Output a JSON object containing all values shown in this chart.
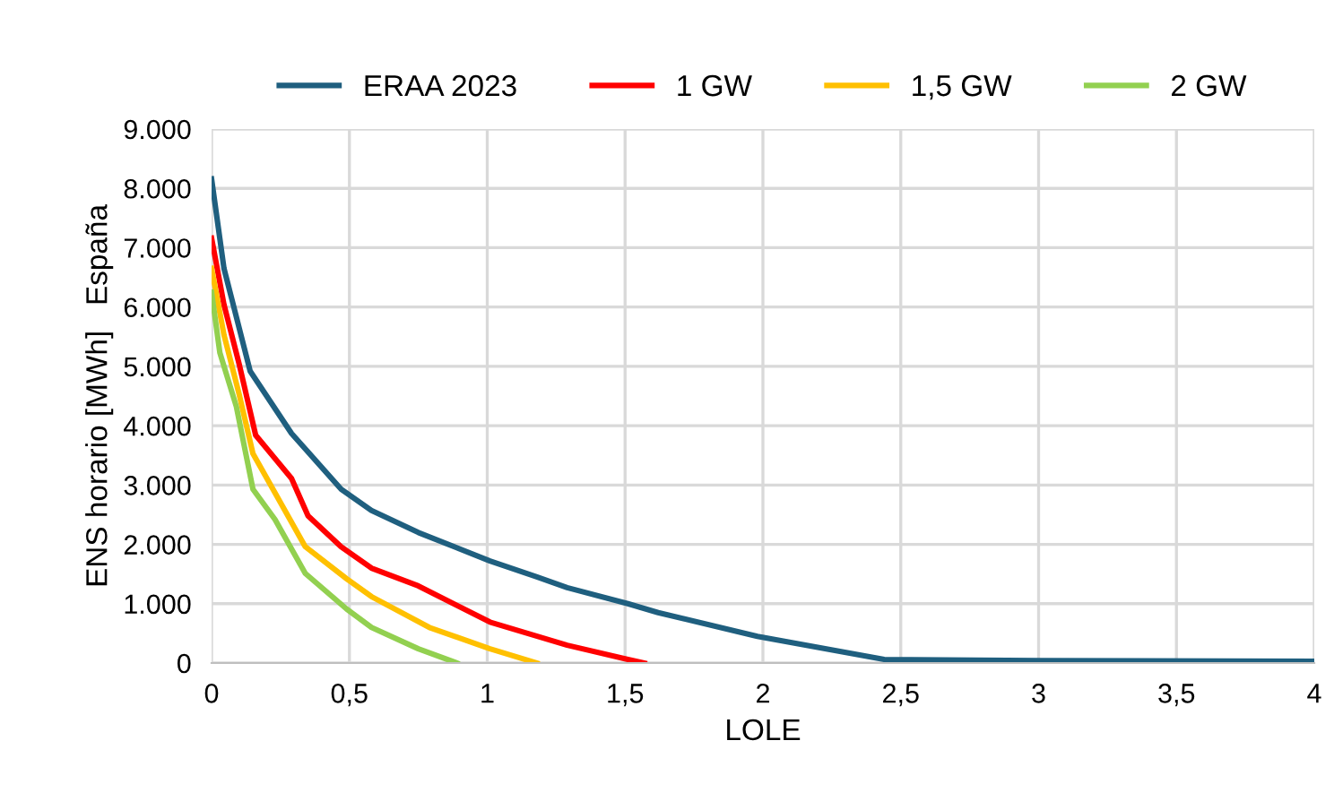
{
  "chart_data": {
    "type": "line",
    "xlabel": "LOLE",
    "ylabel": "ENS horario [MWh]   España",
    "xlim": [
      0,
      4
    ],
    "ylim": [
      0,
      9000
    ],
    "xticks": [
      0,
      {
        "value": 0.5,
        "label": "0,5"
      },
      1,
      {
        "value": 1.5,
        "label": "1,5"
      },
      2,
      {
        "value": 2.5,
        "label": "2,5"
      },
      3,
      {
        "value": 3.5,
        "label": "3,5"
      },
      4
    ],
    "yticks": [
      0,
      {
        "value": 1000,
        "label": "1.000"
      },
      {
        "value": 2000,
        "label": "2.000"
      },
      {
        "value": 3000,
        "label": "3.000"
      },
      {
        "value": 4000,
        "label": "4.000"
      },
      {
        "value": 5000,
        "label": "5.000"
      },
      {
        "value": 6000,
        "label": "6.000"
      },
      {
        "value": 7000,
        "label": "7.000"
      },
      {
        "value": 8000,
        "label": "8.000"
      },
      {
        "value": 9000,
        "label": "9.000"
      }
    ],
    "grid": true,
    "legend": "top",
    "marker": "none",
    "line_style": "solid",
    "series": [
      {
        "name": "ERAA 2023",
        "color": "#1f5f7f",
        "x": [
          0,
          0.045,
          0.14,
          0.29,
          0.47,
          0.58,
          0.75,
          1.01,
          1.18,
          1.29,
          1.51,
          1.62,
          1.98,
          2.44,
          3.0,
          4.0
        ],
        "values": [
          8160,
          6650,
          4920,
          3870,
          2930,
          2570,
          2200,
          1720,
          1450,
          1270,
          1000,
          850,
          450,
          60,
          40,
          30
        ]
      },
      {
        "name": "1 GW",
        "color": "#ff0000",
        "x": [
          0,
          0.045,
          0.1,
          0.16,
          0.29,
          0.35,
          0.47,
          0.58,
          0.75,
          1.01,
          1.29,
          1.51,
          1.57
        ],
        "values": [
          7160,
          6040,
          5040,
          3840,
          3110,
          2480,
          1960,
          1600,
          1300,
          690,
          300,
          60,
          0
        ]
      },
      {
        "name": "1,5 GW",
        "color": "#ffc000",
        "x": [
          0,
          0.045,
          0.1,
          0.15,
          0.23,
          0.34,
          0.49,
          0.58,
          0.79,
          1.01,
          1.18
        ],
        "values": [
          6650,
          5530,
          4530,
          3530,
          2870,
          1960,
          1420,
          1120,
          600,
          240,
          0
        ]
      },
      {
        "name": "2 GW",
        "color": "#92d050",
        "x": [
          0,
          0.03,
          0.09,
          0.15,
          0.23,
          0.34,
          0.49,
          0.58,
          0.75,
          0.89
        ],
        "values": [
          6250,
          5230,
          4320,
          2930,
          2420,
          1510,
          910,
          600,
          240,
          0
        ]
      }
    ]
  }
}
